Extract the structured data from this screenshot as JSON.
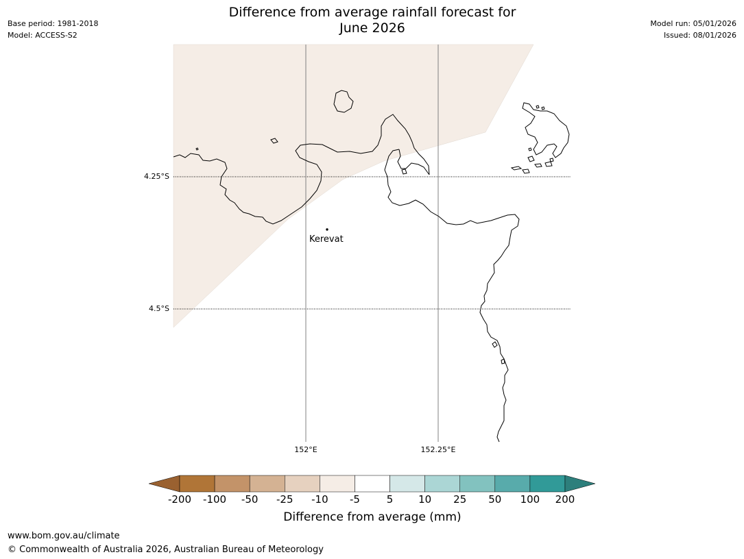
{
  "title": {
    "line1": "Difference from average rainfall forecast for",
    "line2": "June 2026"
  },
  "meta_left": {
    "base_period": "Base period: 1981-2018",
    "model": "Model: ACCESS-S2"
  },
  "meta_right": {
    "model_run": "Model run: 05/01/2026",
    "issued": "Issued: 08/01/2026"
  },
  "map": {
    "latitude_labels": [
      "4.25°S",
      "4.5°S"
    ],
    "longitude_labels": [
      "152°E",
      "152.25°E"
    ],
    "place": "Kerevat",
    "shaded_region_category": "-10 to -5",
    "shaded_region_color": "#f5ede6",
    "coastline_color": "#000000",
    "gridline_lon_color": "#808080"
  },
  "colorbar": {
    "label": "Difference from average (mm)",
    "ticks": [
      "-200",
      "-100",
      "-50",
      "-25",
      "-10",
      "-5",
      "5",
      "10",
      "25",
      "50",
      "100",
      "200"
    ],
    "colors": [
      "#b07537",
      "#c39369",
      "#d4b293",
      "#e6d1bf",
      "#f5ede6",
      "#ffffff",
      "#d5e8e8",
      "#abd6d5",
      "#82c2bf",
      "#58abab",
      "#319a98"
    ],
    "extend_low_color": "#9a6130",
    "extend_high_color": "#2d7f7c"
  },
  "footer": {
    "url": "www.bom.gov.au/climate",
    "copyright": "© Commonwealth of Australia 2026, Australian Bureau of Meteorology"
  }
}
